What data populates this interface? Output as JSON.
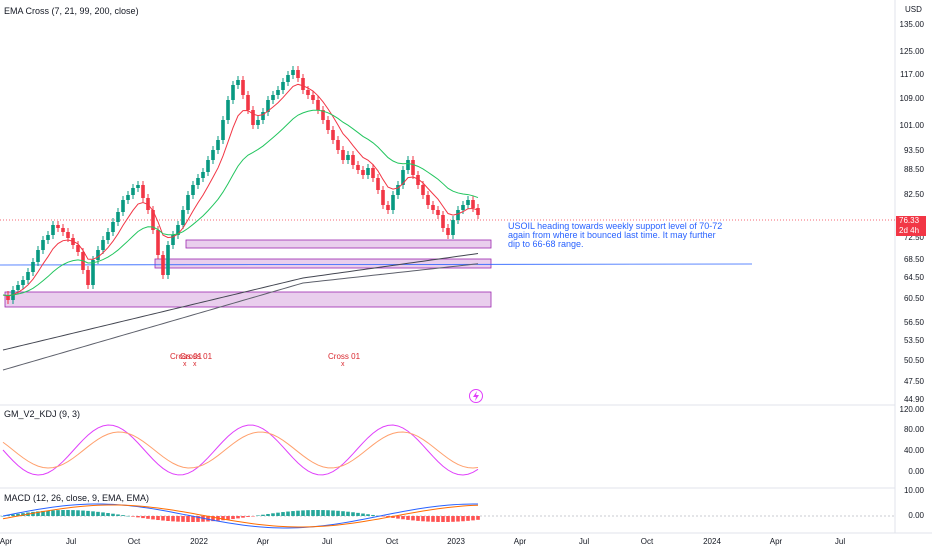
{
  "main_indicator": "EMA Cross (7, 21, 99, 200, close)",
  "currency": "USD",
  "price_scale": [
    "135.00",
    "125.00",
    "117.00",
    "109.00",
    "101.00",
    "93.50",
    "88.50",
    "82.50",
    "72.50",
    "68.50",
    "64.50",
    "60.50",
    "56.50",
    "53.50",
    "50.50",
    "47.50",
    "44.90"
  ],
  "price_badge": {
    "price": "76.33",
    "countdown": "2d 4h"
  },
  "annotation": "USOIL heading towards weekly support level of 70-72 again from where it bounced last time. It may further dip to 66-68 range.",
  "cross_labels": [
    "Cross 01",
    "Cross 01",
    "Cross 01"
  ],
  "cross_marker": "x",
  "kdj": {
    "title": "GM_V2_KDJ (9, 3)",
    "scale": [
      "120.00",
      "80.00",
      "40.00",
      "0.00"
    ]
  },
  "macd": {
    "title": "MACD (12, 26, close, 9, EMA, EMA)",
    "scale": [
      "10.00",
      "0.00"
    ]
  },
  "time_scale": [
    "Apr",
    "Jul",
    "Oct",
    "2022",
    "Apr",
    "Jul",
    "Oct",
    "2023",
    "Apr",
    "Jul",
    "Oct",
    "2024",
    "Apr",
    "Jul"
  ],
  "lightning_icon": "lightning-icon",
  "colors": {
    "up": "#089981",
    "down": "#f23645",
    "ema7": "#f23645",
    "ema21": "#22c55e",
    "ema99": "#5d606b",
    "zone": "#ce93d8",
    "note": "#2962ff",
    "k": "#e040fb",
    "d": "#ffa06d"
  }
}
